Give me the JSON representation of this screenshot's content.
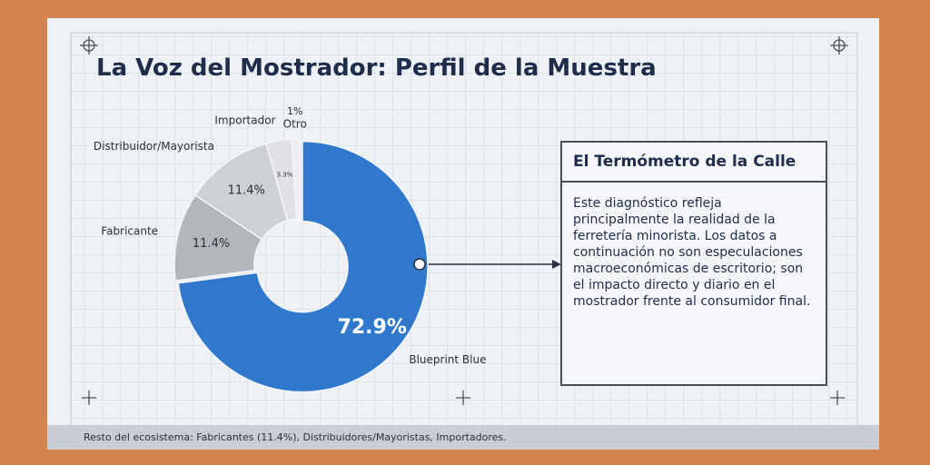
{
  "chart_data": {
    "type": "pie",
    "donut": true,
    "title": "La Voz del Mostrador: Perfil de la Muestra",
    "categories": [
      "Blueprint Blue",
      "Fabricante",
      "Distribuidor/Mayorista",
      "Importador",
      "Otro"
    ],
    "values": [
      72.9,
      11.4,
      11.4,
      3.3,
      1
    ],
    "value_labels": [
      "72.9%",
      "11.4%",
      "11.4%",
      "3.3%",
      "1%"
    ],
    "colors": [
      "#2f78cc",
      "#b3b6bb",
      "#cdd0d5",
      "#dfe1e5",
      "#eceef1"
    ]
  },
  "callout": {
    "title": "El Termómetro de la Calle",
    "body": "Este diagnóstico refleja principalmente la realidad de la ferretería minorista. Los datos a continuación no son especulaciones macroeconómicas de escritorio; son el impacto directo y diario en el mostrador frente al consumidor final."
  },
  "footer": "Resto del ecosistema: Fabricantes (11.4%), Distribuidores/Mayoristas, Importadores."
}
